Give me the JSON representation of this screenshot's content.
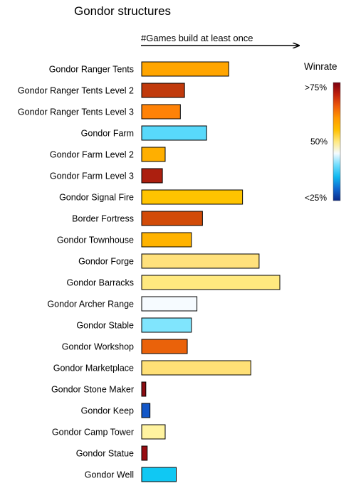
{
  "chart_data": {
    "type": "bar",
    "orientation": "horizontal",
    "title": "Gondor structures",
    "xlabel": "#Games build at least once",
    "ylabel": "",
    "xlim": [
      0,
      100
    ],
    "categories": [
      "Gondor Ranger Tents",
      "Gondor Ranger Tents Level 2",
      "Gondor Ranger Tents Level 3",
      "Gondor Farm",
      "Gondor Farm Level 2",
      "Gondor Farm Level 3",
      "Gondor Signal Fire",
      "Border Fortress",
      "Gondor Townhouse",
      "Gondor Forge",
      "Gondor Barracks",
      "Gondor Archer Range",
      "Gondor Stable",
      "Gondor Workshop",
      "Gondor Marketplace",
      "Gondor Stone Maker",
      "Gondor Keep",
      "Gondor Camp Tower",
      "Gondor Statue",
      "Gondor Well"
    ],
    "values": [
      63,
      31,
      28,
      47,
      17,
      15,
      73,
      44,
      36,
      85,
      100,
      40,
      36,
      33,
      79,
      3,
      6,
      17,
      4,
      25
    ],
    "colors": [
      "#ffa500",
      "#c13a0c",
      "#ff8207",
      "#58d9fb",
      "#ffaf00",
      "#ac1f0f",
      "#ffc400",
      "#d24b08",
      "#ffb300",
      "#ffe17c",
      "#ffe97f",
      "#f6fbff",
      "#80e5fd",
      "#ea620a",
      "#ffe076",
      "#8d0d12",
      "#1357c8",
      "#fff3a0",
      "#980d12",
      "#10c8f3"
    ],
    "legend": {
      "title": "Winrate",
      "labels": [
        ">75%",
        "50%",
        "<25%"
      ],
      "placement": "right",
      "gradient": [
        "#7a0010",
        "#c0200c",
        "#ee5a0a",
        "#ff9800",
        "#ffc000",
        "#ffe880",
        "#f4fbff",
        "#6fdcfd",
        "#10b8f0",
        "#1068d0",
        "#0a2a8a"
      ]
    },
    "grid": false
  }
}
